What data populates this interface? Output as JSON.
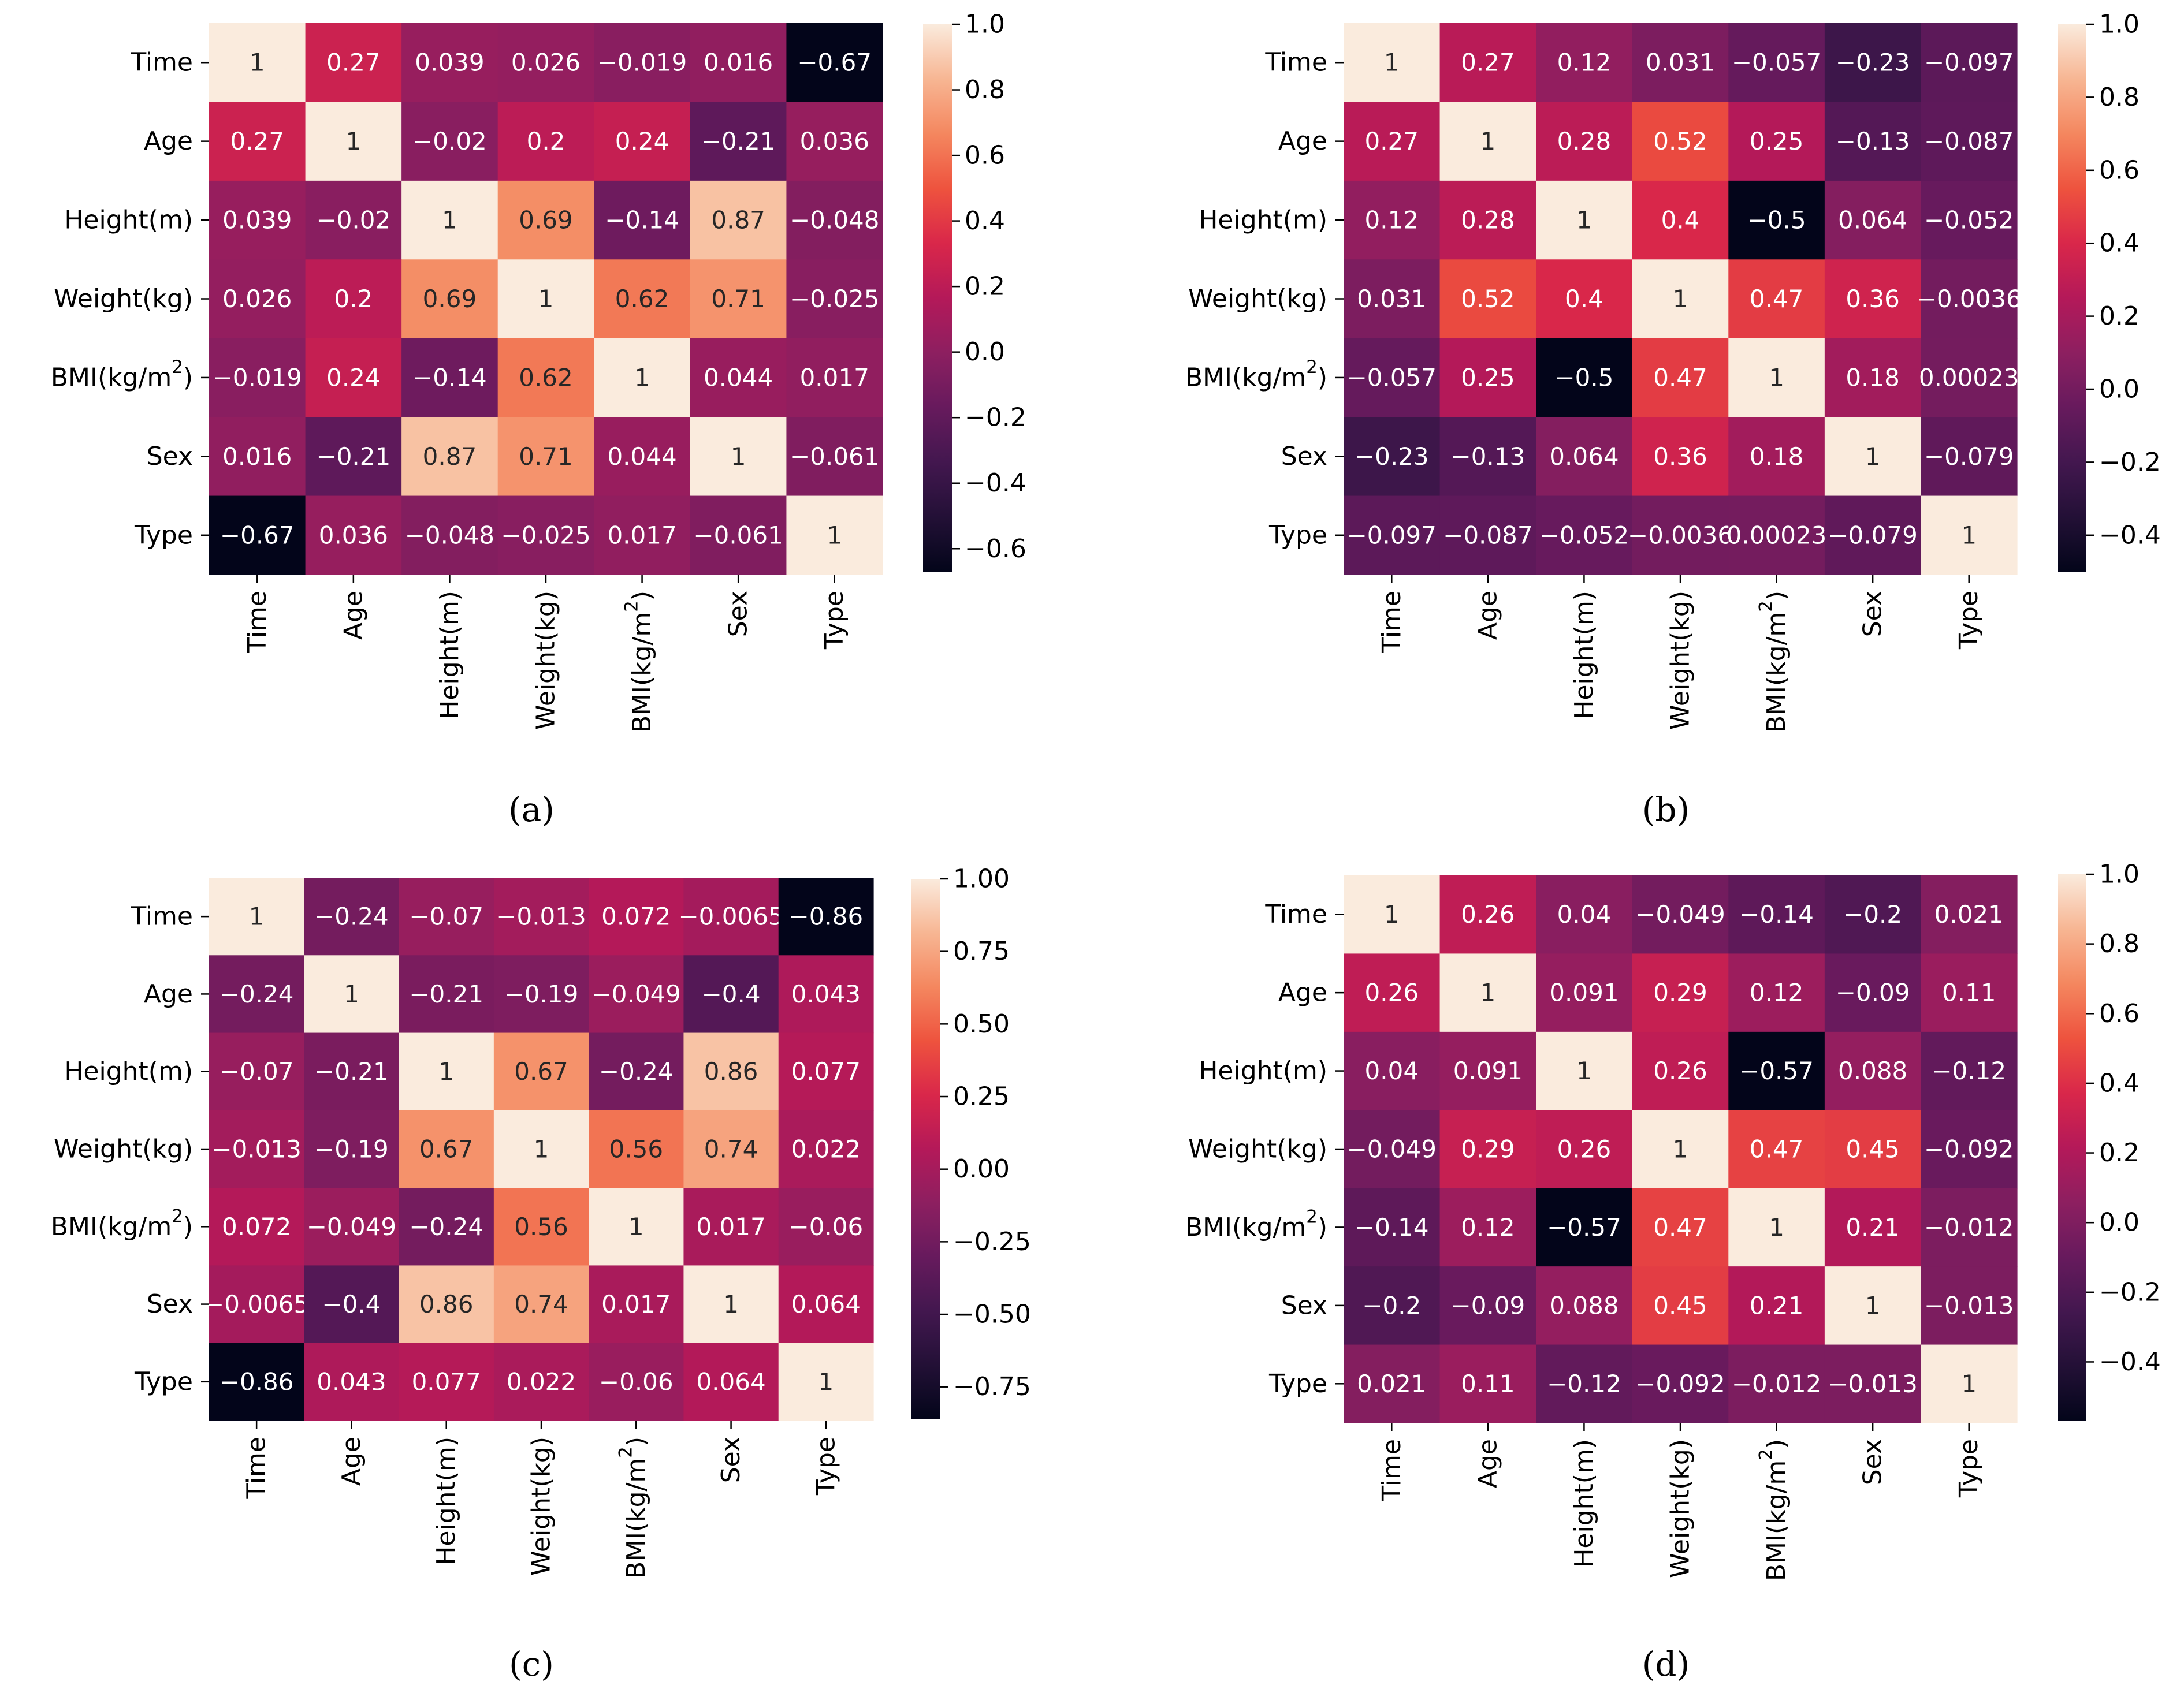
{
  "figure": {
    "panels": [
      {
        "label": "(a)"
      },
      {
        "label": "(b)"
      },
      {
        "label": "(c)"
      },
      {
        "label": "(d)"
      }
    ]
  },
  "chart_data": [
    {
      "type": "heatmap",
      "title": "",
      "caption": "(a)",
      "x_labels": [
        "Time",
        "Age",
        "Height(m)",
        "Weight(kg)",
        "BMI(kg/m²)",
        "Sex",
        "Type"
      ],
      "y_labels": [
        "Time",
        "Age",
        "Height(m)",
        "Weight(kg)",
        "BMI(kg/m²)",
        "Sex",
        "Type"
      ],
      "values": [
        [
          1,
          0.27,
          0.039,
          0.026,
          -0.019,
          0.016,
          -0.67
        ],
        [
          0.27,
          1,
          -0.02,
          0.2,
          0.24,
          -0.21,
          0.036
        ],
        [
          0.039,
          -0.02,
          1,
          0.69,
          -0.14,
          0.87,
          -0.048
        ],
        [
          0.026,
          0.2,
          0.69,
          1,
          0.62,
          0.71,
          -0.025
        ],
        [
          -0.019,
          0.24,
          -0.14,
          0.62,
          1,
          0.044,
          0.017
        ],
        [
          0.016,
          -0.21,
          0.87,
          0.71,
          0.044,
          1,
          -0.061
        ],
        [
          -0.67,
          0.036,
          -0.048,
          -0.025,
          0.017,
          -0.061,
          1
        ]
      ],
      "annotations": [
        [
          "1",
          "0.27",
          "0.039",
          "0.026",
          "−0.019",
          "0.016",
          "−0.67"
        ],
        [
          "0.27",
          "1",
          "−0.02",
          "0.2",
          "0.24",
          "−0.21",
          "0.036"
        ],
        [
          "0.039",
          "−0.02",
          "1",
          "0.69",
          "−0.14",
          "0.87",
          "−0.048"
        ],
        [
          "0.026",
          "0.2",
          "0.69",
          "1",
          "0.62",
          "0.71",
          "−0.025"
        ],
        [
          "−0.019",
          "0.24",
          "−0.14",
          "0.62",
          "1",
          "0.044",
          "0.017"
        ],
        [
          "0.016",
          "−0.21",
          "0.87",
          "0.71",
          "0.044",
          "1",
          "−0.061"
        ],
        [
          "−0.67",
          "0.036",
          "−0.048",
          "−0.025",
          "0.017",
          "−0.061",
          "1"
        ]
      ],
      "colorbar": {
        "range": [
          -0.67,
          1
        ],
        "ticks": [
          1.0,
          0.8,
          0.6,
          0.4,
          0.2,
          0.0,
          -0.2,
          -0.4,
          -0.6
        ],
        "tick_labels": [
          "1.0",
          "0.8",
          "0.6",
          "0.4",
          "0.2",
          "0.0",
          "−0.2",
          "−0.4",
          "−0.6"
        ]
      },
      "colormap": "rocket"
    },
    {
      "type": "heatmap",
      "title": "",
      "caption": "(b)",
      "x_labels": [
        "Time",
        "Age",
        "Height(m)",
        "Weight(kg)",
        "BMI(kg/m²)",
        "Sex",
        "Type"
      ],
      "y_labels": [
        "Time",
        "Age",
        "Height(m)",
        "Weight(kg)",
        "BMI(kg/m²)",
        "Sex",
        "Type"
      ],
      "values": [
        [
          1,
          0.27,
          0.12,
          0.031,
          -0.057,
          -0.23,
          -0.097
        ],
        [
          0.27,
          1,
          0.28,
          0.52,
          0.25,
          -0.13,
          -0.087
        ],
        [
          0.12,
          0.28,
          1,
          0.4,
          -0.5,
          0.064,
          -0.052
        ],
        [
          0.031,
          0.52,
          0.4,
          1,
          0.47,
          0.36,
          -0.0036
        ],
        [
          -0.057,
          0.25,
          -0.5,
          0.47,
          1,
          0.18,
          0.00023
        ],
        [
          -0.23,
          -0.13,
          0.064,
          0.36,
          0.18,
          1,
          -0.079
        ],
        [
          -0.097,
          -0.087,
          -0.052,
          -0.0036,
          0.00023,
          -0.079,
          1
        ]
      ],
      "annotations": [
        [
          "1",
          "0.27",
          "0.12",
          "0.031",
          "−0.057",
          "−0.23",
          "−0.097"
        ],
        [
          "0.27",
          "1",
          "0.28",
          "0.52",
          "0.25",
          "−0.13",
          "−0.087"
        ],
        [
          "0.12",
          "0.28",
          "1",
          "0.4",
          "−0.5",
          "0.064",
          "−0.052"
        ],
        [
          "0.031",
          "0.52",
          "0.4",
          "1",
          "0.47",
          "0.36",
          "−0.0036"
        ],
        [
          "−0.057",
          "0.25",
          "−0.5",
          "0.47",
          "1",
          "0.18",
          "0.00023"
        ],
        [
          "−0.23",
          "−0.13",
          "0.064",
          "0.36",
          "0.18",
          "1",
          "−0.079"
        ],
        [
          "−0.097",
          "−0.087",
          "−0.052",
          "−0.0036",
          "0.00023",
          "−0.079",
          "1"
        ]
      ],
      "colorbar": {
        "range": [
          -0.5,
          1
        ],
        "ticks": [
          1.0,
          0.8,
          0.6,
          0.4,
          0.2,
          0.0,
          -0.2,
          -0.4
        ],
        "tick_labels": [
          "1.0",
          "0.8",
          "0.6",
          "0.4",
          "0.2",
          "0.0",
          "−0.2",
          "−0.4"
        ]
      },
      "colormap": "rocket"
    },
    {
      "type": "heatmap",
      "title": "",
      "caption": "(c)",
      "x_labels": [
        "Time",
        "Age",
        "Height(m)",
        "Weight(kg)",
        "BMI(kg/m²)",
        "Sex",
        "Type"
      ],
      "y_labels": [
        "Time",
        "Age",
        "Height(m)",
        "Weight(kg)",
        "BMI(kg/m²)",
        "Sex",
        "Type"
      ],
      "values": [
        [
          1,
          -0.24,
          -0.07,
          -0.013,
          0.072,
          -0.0065,
          -0.86
        ],
        [
          -0.24,
          1,
          -0.21,
          -0.19,
          -0.049,
          -0.4,
          0.043
        ],
        [
          -0.07,
          -0.21,
          1,
          0.67,
          -0.24,
          0.86,
          0.077
        ],
        [
          -0.013,
          -0.19,
          0.67,
          1,
          0.56,
          0.74,
          0.022
        ],
        [
          0.072,
          -0.049,
          -0.24,
          0.56,
          1,
          0.017,
          -0.06
        ],
        [
          -0.0065,
          -0.4,
          0.86,
          0.74,
          0.017,
          1,
          0.064
        ],
        [
          -0.86,
          0.043,
          0.077,
          0.022,
          -0.06,
          0.064,
          1
        ]
      ],
      "annotations": [
        [
          "1",
          "−0.24",
          "−0.07",
          "−0.013",
          "0.072",
          "−0.0065",
          "−0.86"
        ],
        [
          "−0.24",
          "1",
          "−0.21",
          "−0.19",
          "−0.049",
          "−0.4",
          "0.043"
        ],
        [
          "−0.07",
          "−0.21",
          "1",
          "0.67",
          "−0.24",
          "0.86",
          "0.077"
        ],
        [
          "−0.013",
          "−0.19",
          "0.67",
          "1",
          "0.56",
          "0.74",
          "0.022"
        ],
        [
          "0.072",
          "−0.049",
          "−0.24",
          "0.56",
          "1",
          "0.017",
          "−0.06"
        ],
        [
          "−0.0065",
          "−0.4",
          "0.86",
          "0.74",
          "0.017",
          "1",
          "0.064"
        ],
        [
          "−0.86",
          "0.043",
          "0.077",
          "0.022",
          "−0.06",
          "0.064",
          "1"
        ]
      ],
      "colorbar": {
        "range": [
          -0.86,
          1
        ],
        "ticks": [
          1.0,
          0.75,
          0.5,
          0.25,
          0.0,
          -0.25,
          -0.5,
          -0.75
        ],
        "tick_labels": [
          "1.00",
          "0.75",
          "0.50",
          "0.25",
          "0.00",
          "−0.25",
          "−0.50",
          "−0.75"
        ]
      },
      "colormap": "rocket"
    },
    {
      "type": "heatmap",
      "title": "",
      "caption": "(d)",
      "x_labels": [
        "Time",
        "Age",
        "Height(m)",
        "Weight(kg)",
        "BMI(kg/m²)",
        "Sex",
        "Type"
      ],
      "y_labels": [
        "Time",
        "Age",
        "Height(m)",
        "Weight(kg)",
        "BMI(kg/m²)",
        "Sex",
        "Type"
      ],
      "values": [
        [
          1,
          0.26,
          0.04,
          -0.049,
          -0.14,
          -0.2,
          0.021
        ],
        [
          0.26,
          1,
          0.091,
          0.29,
          0.12,
          -0.09,
          0.11
        ],
        [
          0.04,
          0.091,
          1,
          0.26,
          -0.57,
          0.088,
          -0.12
        ],
        [
          -0.049,
          0.29,
          0.26,
          1,
          0.47,
          0.45,
          -0.092
        ],
        [
          -0.14,
          0.12,
          -0.57,
          0.47,
          1,
          0.21,
          -0.012
        ],
        [
          -0.2,
          -0.09,
          0.088,
          0.45,
          0.21,
          1,
          -0.013
        ],
        [
          0.021,
          0.11,
          -0.12,
          -0.092,
          -0.012,
          -0.013,
          1
        ]
      ],
      "annotations": [
        [
          "1",
          "0.26",
          "0.04",
          "−0.049",
          "−0.14",
          "−0.2",
          "0.021"
        ],
        [
          "0.26",
          "1",
          "0.091",
          "0.29",
          "0.12",
          "−0.09",
          "0.11"
        ],
        [
          "0.04",
          "0.091",
          "1",
          "0.26",
          "−0.57",
          "0.088",
          "−0.12"
        ],
        [
          "−0.049",
          "0.29",
          "0.26",
          "1",
          "0.47",
          "0.45",
          "−0.092"
        ],
        [
          "−0.14",
          "0.12",
          "−0.57",
          "0.47",
          "1",
          "0.21",
          "−0.012"
        ],
        [
          "−0.2",
          "−0.09",
          "0.088",
          "0.45",
          "0.21",
          "1",
          "−0.013"
        ],
        [
          "0.021",
          "0.11",
          "−0.12",
          "−0.092",
          "−0.012",
          "−0.013",
          "1"
        ]
      ],
      "colorbar": {
        "range": [
          -0.57,
          1
        ],
        "ticks": [
          1.0,
          0.8,
          0.6,
          0.4,
          0.2,
          0.0,
          -0.2,
          -0.4
        ],
        "tick_labels": [
          "1.0",
          "0.8",
          "0.6",
          "0.4",
          "0.2",
          "0.0",
          "−0.2",
          "−0.4"
        ]
      },
      "colormap": "rocket"
    }
  ]
}
